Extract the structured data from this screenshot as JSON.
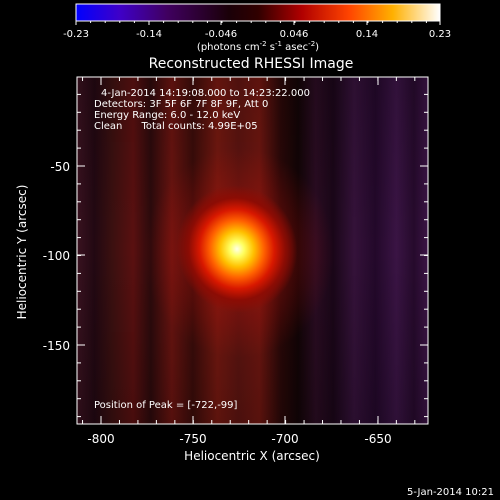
{
  "colorbar": {
    "ticks": [
      "-0.23",
      "-0.14",
      "-0.046",
      "0.046",
      "0.14",
      "0.23"
    ],
    "units": "(photons cm",
    "units_sup1": "-2",
    "units_mid": " s",
    "units_sup2": "-1",
    "units_mid2": " asec",
    "units_sup3": "-2",
    "units_end": ")"
  },
  "title": "Reconstructed RHESSI Image",
  "info": {
    "time": "4-Jan-2014 14:19:08.000 to 14:23:22.000",
    "detectors": "Detectors: 3F 5F 6F 7F 8F 9F, Att 0",
    "energy": "Energy Range: 6.0 - 12.0 keV",
    "clean": "Clean      Total counts: 4.99E+05"
  },
  "peak_label": "Position of Peak = [-722,-99]",
  "x_axis": {
    "label": "Heliocentric X (arcsec)",
    "ticks": [
      "-800",
      "-750",
      "-700",
      "-650"
    ]
  },
  "y_axis": {
    "label": "Heliocentric Y (arcsec)",
    "ticks": [
      "-50",
      "-100",
      "-150"
    ]
  },
  "timestamp": "5-Jan-2014 10:21",
  "image": {
    "colormap": "hot",
    "peak_x": -722,
    "peak_y": -99,
    "xlim": [
      -812,
      -622
    ],
    "ylim": [
      -192,
      -10
    ]
  }
}
